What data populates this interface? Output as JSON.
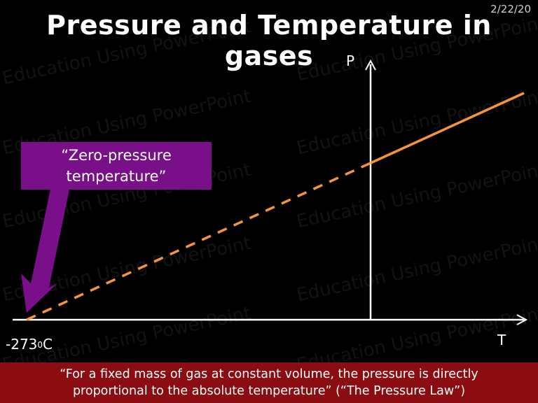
{
  "header": {
    "date": "2/22/20",
    "title": "Pressure and Temperature in gases"
  },
  "watermark": {
    "text": "Education Using PowerPoint"
  },
  "graph": {
    "y_axis_label": "P",
    "x_axis_label": "T",
    "zero_label_main": "-273",
    "zero_label_sup": "0",
    "zero_label_unit": "C",
    "line_color": "#f5953a",
    "axis_color": "#ffffff"
  },
  "callout": {
    "line1": "“Zero-pressure",
    "line2": "temperature”",
    "color": "#7a0f8a"
  },
  "footer": {
    "line1": "“For a fixed mass of gas at constant volume, the pressure is directly",
    "line2": "proportional to the absolute temperature” (“The Pressure Law”)",
    "color": "#8b0d12"
  }
}
